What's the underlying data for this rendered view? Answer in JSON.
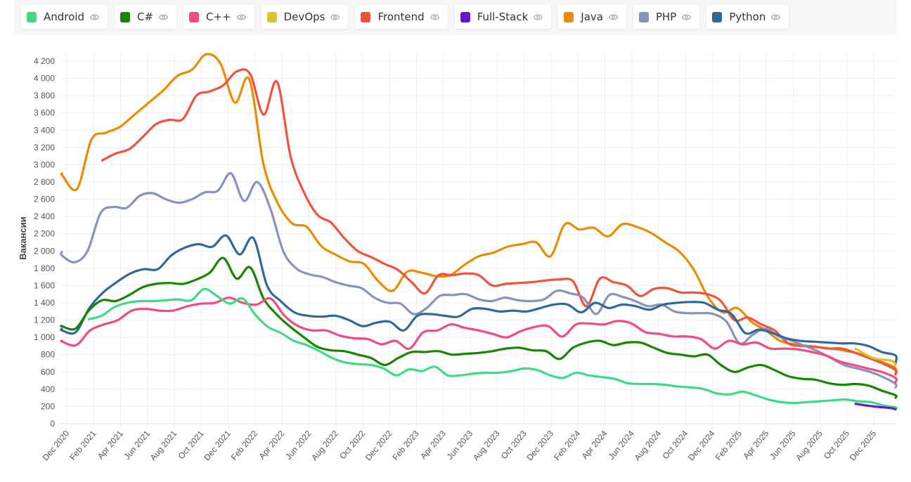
{
  "legend": [
    {
      "name": "Android",
      "color": "#3ddc84"
    },
    {
      "name": "C#",
      "color": "#178600"
    },
    {
      "name": "C++",
      "color": "#f34b7d"
    },
    {
      "name": "DevOps",
      "color": "#dbc424"
    },
    {
      "name": "Frontend",
      "color": "#f1533a"
    },
    {
      "name": "Full-Stack",
      "color": "#6c12c9"
    },
    {
      "name": "Java",
      "color": "#ed8b00"
    },
    {
      "name": "PHP",
      "color": "#8892bf"
    },
    {
      "name": "Python",
      "color": "#306998"
    }
  ],
  "legend_icon": "eye-icon",
  "chart_data": {
    "type": "line",
    "ylabel": "Вакансии",
    "xlabel": "",
    "ylim": [
      0,
      4200
    ],
    "yticks": [
      "0",
      "200",
      "400",
      "600",
      "800",
      "1 000",
      "1 200",
      "1 400",
      "1 600",
      "1 800",
      "2 000",
      "2 200",
      "2 400",
      "2 600",
      "2 800",
      "3 000",
      "3 200",
      "3 400",
      "3 600",
      "3 800",
      "4 000",
      "4 200"
    ],
    "ytick_values": [
      0,
      200,
      400,
      600,
      800,
      1000,
      1200,
      1400,
      1600,
      1800,
      2000,
      2200,
      2400,
      2600,
      2800,
      3000,
      3200,
      3400,
      3600,
      3800,
      4000,
      4200
    ],
    "xticks": [
      "Dec 2020",
      "Feb 2021",
      "Apr 2021",
      "Jun 2021",
      "Aug 2021",
      "Oct 2021",
      "Dec 2021",
      "Feb 2022",
      "Apr 2022",
      "Jun 2022",
      "Aug 2022",
      "Oct 2022",
      "Dec 2022",
      "Feb 2023",
      "Apr 2023",
      "Jun 2023",
      "Aug 2023",
      "Oct 2023",
      "Dec 2023",
      "Feb 2024",
      "Apr 2024",
      "Jun 2024",
      "Aug 2024",
      "Oct 2024",
      "Dec 2024",
      "Feb 2025",
      "Apr 2025",
      "Jun 2025",
      "Aug 2025",
      "Oct 2025",
      "Dec 2025"
    ],
    "grid": true,
    "legend_position": "top",
    "x_start_month": "2020-11",
    "series": [
      {
        "name": "Java",
        "start": 0,
        "values": [
          2900,
          2870,
          2720,
          3290,
          3370,
          3440,
          3580,
          3720,
          3860,
          4030,
          4100,
          4280,
          4170,
          3720,
          3990,
          3000,
          2550,
          2320,
          2280,
          2060,
          1960,
          1880,
          1850,
          1650,
          1540,
          1760,
          1750,
          1710,
          1720,
          1840,
          1940,
          1980,
          2050,
          2080,
          2100,
          1940,
          2310,
          2250,
          2270,
          2170,
          2310,
          2280,
          2210,
          2100,
          1990,
          1780,
          1460,
          1290,
          1340,
          1180,
          1080,
          960,
          920,
          900,
          880,
          860,
          830,
          790,
          720,
          650,
          580
        ]
      },
      {
        "name": "Frontend",
        "start": 4,
        "values": [
          3050,
          3130,
          3180,
          3320,
          3470,
          3520,
          3530,
          3800,
          3850,
          3920,
          4080,
          4050,
          3580,
          3960,
          3100,
          2680,
          2420,
          2330,
          2150,
          2000,
          1930,
          1850,
          1780,
          1640,
          1510,
          1720,
          1720,
          1740,
          1720,
          1600,
          1620,
          1630,
          1640,
          1660,
          1670,
          1650,
          1360,
          1680,
          1640,
          1600,
          1480,
          1560,
          1570,
          1520,
          1520,
          1500,
          1420,
          1200,
          1230,
          1150,
          1080,
          930,
          900,
          890,
          870,
          870,
          820,
          760,
          700,
          620,
          570
        ]
      },
      {
        "name": "PHP",
        "start": 0,
        "values": [
          1990,
          1950,
          1870,
          2000,
          2440,
          2510,
          2500,
          2640,
          2670,
          2600,
          2560,
          2600,
          2680,
          2700,
          2900,
          2580,
          2800,
          2500,
          2000,
          1800,
          1730,
          1700,
          1640,
          1600,
          1570,
          1460,
          1400,
          1390,
          1270,
          1340,
          1480,
          1490,
          1500,
          1440,
          1420,
          1460,
          1430,
          1420,
          1440,
          1540,
          1510,
          1460,
          1270,
          1490,
          1470,
          1420,
          1360,
          1380,
          1300,
          1280,
          1280,
          1270,
          1180,
          930,
          1030,
          1100,
          1010,
          960,
          900,
          840,
          760,
          680,
          640,
          600,
          540,
          460,
          420
        ]
      },
      {
        "name": "Python",
        "start": 0,
        "values": [
          1100,
          1080,
          1060,
          1340,
          1520,
          1640,
          1740,
          1790,
          1790,
          1950,
          2040,
          2080,
          2050,
          2180,
          1960,
          2150,
          1600,
          1420,
          1290,
          1250,
          1240,
          1250,
          1200,
          1130,
          1170,
          1180,
          1080,
          1250,
          1270,
          1250,
          1240,
          1330,
          1330,
          1300,
          1310,
          1300,
          1340,
          1380,
          1380,
          1290,
          1400,
          1340,
          1380,
          1360,
          1320,
          1380,
          1400,
          1410,
          1400,
          1320,
          1270,
          1050,
          1090,
          1050,
          990,
          960,
          950,
          940,
          930,
          930,
          900,
          830,
          790,
          700
        ]
      },
      {
        "name": "C#",
        "start": 0,
        "values": [
          1130,
          1130,
          1100,
          1310,
          1430,
          1420,
          1490,
          1580,
          1620,
          1630,
          1620,
          1670,
          1750,
          1920,
          1680,
          1810,
          1450,
          1260,
          1120,
          1000,
          890,
          850,
          840,
          800,
          760,
          680,
          760,
          830,
          830,
          840,
          800,
          810,
          820,
          840,
          870,
          880,
          850,
          840,
          750,
          880,
          940,
          960,
          910,
          940,
          940,
          880,
          820,
          800,
          780,
          800,
          680,
          600,
          650,
          680,
          620,
          550,
          520,
          510,
          470,
          450,
          460,
          440,
          380,
          330,
          300
        ]
      },
      {
        "name": "C++",
        "start": 0,
        "values": [
          960,
          950,
          910,
          1080,
          1150,
          1200,
          1310,
          1330,
          1310,
          1310,
          1360,
          1390,
          1400,
          1460,
          1400,
          1380,
          1450,
          1250,
          1130,
          1080,
          1080,
          1020,
          990,
          980,
          920,
          960,
          870,
          1060,
          1080,
          1150,
          1110,
          1080,
          1040,
          1000,
          1070,
          1120,
          1130,
          1010,
          1150,
          1160,
          1150,
          1190,
          1160,
          1060,
          1040,
          1010,
          1010,
          980,
          870,
          960,
          920,
          940,
          870,
          870,
          860,
          830,
          790,
          720,
          680,
          640,
          600,
          530,
          480
        ]
      },
      {
        "name": "Android",
        "start": 3,
        "values": [
          1210,
          1250,
          1350,
          1400,
          1420,
          1420,
          1430,
          1440,
          1430,
          1560,
          1480,
          1390,
          1450,
          1260,
          1120,
          1050,
          960,
          910,
          840,
          760,
          710,
          690,
          680,
          640,
          560,
          630,
          610,
          660,
          560,
          560,
          580,
          590,
          590,
          610,
          640,
          620,
          560,
          530,
          590,
          560,
          540,
          520,
          470,
          460,
          460,
          450,
          430,
          420,
          400,
          350,
          340,
          370,
          330,
          280,
          250,
          240,
          250,
          260,
          270,
          280,
          260,
          250,
          210,
          190,
          170
        ]
      },
      {
        "name": "DevOps",
        "start": 60,
        "values": [
          870,
          760,
          730,
          680
        ]
      },
      {
        "name": "Full-Stack",
        "start": 60,
        "values": [
          230,
          200,
          180,
          165
        ]
      }
    ]
  }
}
